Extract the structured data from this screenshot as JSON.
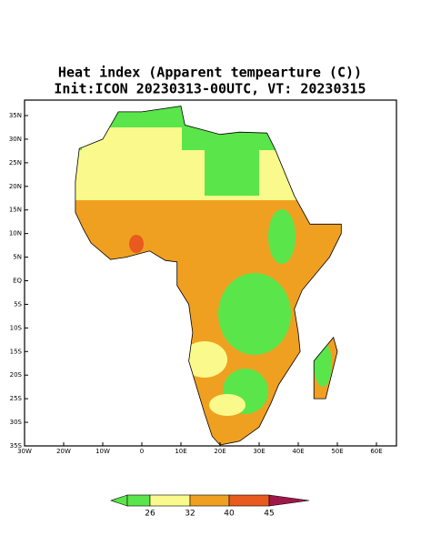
{
  "map": {
    "title": "Heat index (Apparent tempearture (C))",
    "subtitle": "Init:ICON 20230313-00UTC, VT: 20230315",
    "lat_labels": [
      "35N",
      "30N",
      "25N",
      "20N",
      "15N",
      "10N",
      "5N",
      "EQ",
      "5S",
      "10S",
      "15S",
      "20S",
      "25S",
      "30S",
      "35S"
    ],
    "lon_labels": [
      "30W",
      "20W",
      "10W",
      "0",
      "10E",
      "20E",
      "30E",
      "40E",
      "50E",
      "60E"
    ],
    "colorbar_labels": [
      "26",
      "32",
      "40",
      "45"
    ]
  }
}
